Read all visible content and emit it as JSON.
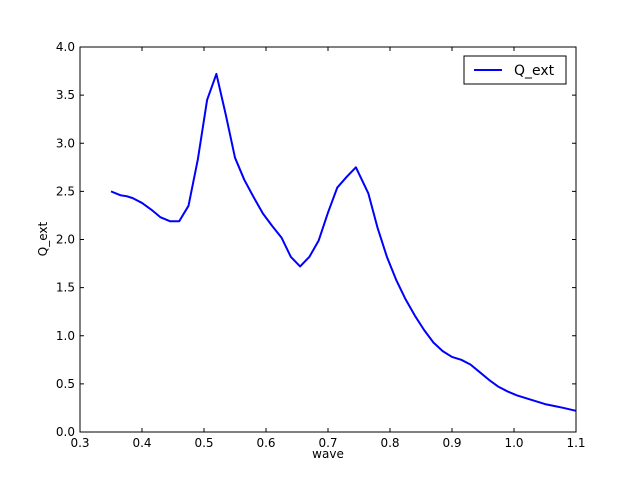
{
  "chart_data": {
    "type": "line",
    "xlabel": "wave",
    "ylabel": "Q_ext",
    "xlim": [
      0.3,
      1.1
    ],
    "ylim": [
      0.0,
      4.0
    ],
    "x_ticks": [
      "0.3",
      "0.4",
      "0.5",
      "0.6",
      "0.7",
      "0.8",
      "0.9",
      "1.0",
      "1.1"
    ],
    "y_ticks": [
      "0.0",
      "0.5",
      "1.0",
      "1.5",
      "2.0",
      "2.5",
      "3.0",
      "3.5",
      "4.0"
    ],
    "grid": false,
    "legend": {
      "placement": "top-right",
      "entries": [
        "Q_ext"
      ]
    },
    "series": [
      {
        "name": "Q_ext",
        "color": "#0000ff",
        "x": [
          0.35,
          0.365,
          0.375,
          0.385,
          0.4,
          0.415,
          0.43,
          0.445,
          0.46,
          0.475,
          0.49,
          0.505,
          0.52,
          0.535,
          0.55,
          0.565,
          0.58,
          0.595,
          0.61,
          0.625,
          0.64,
          0.655,
          0.67,
          0.685,
          0.7,
          0.715,
          0.73,
          0.745,
          0.765,
          0.78,
          0.795,
          0.81,
          0.825,
          0.84,
          0.855,
          0.87,
          0.885,
          0.9,
          0.915,
          0.93,
          0.945,
          0.96,
          0.975,
          0.99,
          1.005,
          1.02,
          1.035,
          1.05,
          1.065,
          1.08,
          1.1
        ],
        "values": [
          2.5,
          2.46,
          2.45,
          2.43,
          2.38,
          2.31,
          2.23,
          2.19,
          2.19,
          2.35,
          2.83,
          3.45,
          3.72,
          3.3,
          2.85,
          2.62,
          2.44,
          2.27,
          2.14,
          2.02,
          1.82,
          1.72,
          1.82,
          1.99,
          2.28,
          2.54,
          2.65,
          2.75,
          2.48,
          2.12,
          1.82,
          1.58,
          1.38,
          1.21,
          1.06,
          0.93,
          0.84,
          0.78,
          0.75,
          0.7,
          0.62,
          0.54,
          0.47,
          0.42,
          0.38,
          0.35,
          0.32,
          0.29,
          0.27,
          0.25,
          0.22
        ]
      }
    ]
  }
}
